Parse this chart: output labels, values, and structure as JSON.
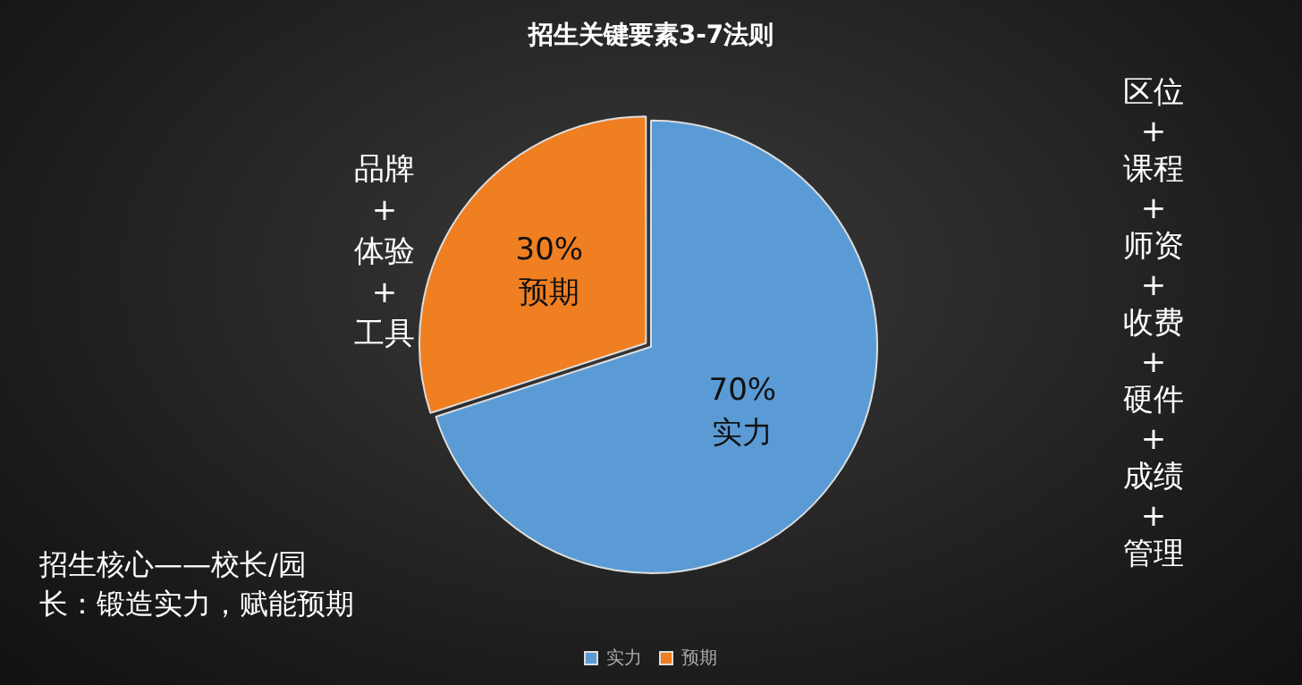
{
  "chart_data": {
    "type": "pie",
    "title": "招生关键要素3-7法则",
    "categories": [
      "实力",
      "预期"
    ],
    "values": [
      70,
      30
    ],
    "colors": [
      "#5b9bd5",
      "#f07f22"
    ],
    "value_labels": [
      "70%",
      "30%"
    ],
    "legend": "bottom",
    "annotations": [
      "品牌\n+\n体验\n+\n工具",
      "区位\n+\n课程\n+\n师资\n+\n收费\n+\n硬件\n+\n成绩\n+\n管理",
      "招生核心——校长/园长：锻造实力，赋能预期"
    ]
  }
}
